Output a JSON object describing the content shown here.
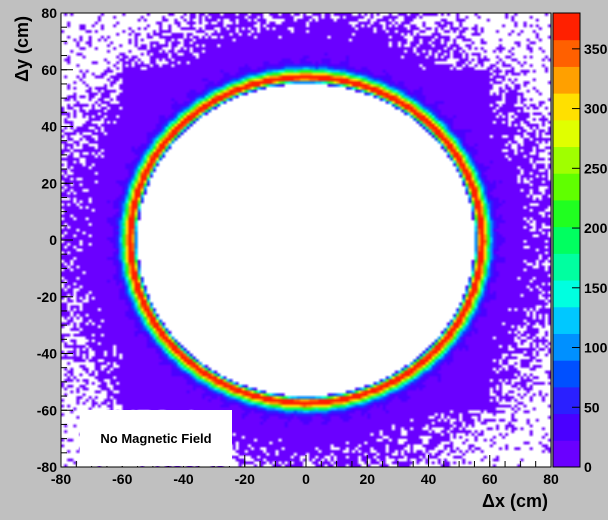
{
  "chart_data": {
    "type": "heatmap",
    "title": "",
    "xlabel": "Δx (cm)",
    "ylabel": "Δy (cm)",
    "xlim": [
      -80,
      80
    ],
    "ylim": [
      -80,
      80
    ],
    "x_ticks": [
      -80,
      -60,
      -40,
      -20,
      0,
      20,
      40,
      60,
      80
    ],
    "y_ticks": [
      -80,
      -60,
      -40,
      -20,
      0,
      20,
      40,
      60,
      80
    ],
    "colorbar": {
      "range": [
        0,
        380
      ],
      "ticks": [
        0,
        50,
        100,
        150,
        200,
        250,
        300,
        350
      ],
      "colors": [
        "#6a00ff",
        "#4a00ff",
        "#2a20ff",
        "#0050ff",
        "#0090ff",
        "#00c8ff",
        "#00ffe0",
        "#00ffa0",
        "#00ff60",
        "#20ff20",
        "#60ff00",
        "#a0ff00",
        "#e0ff00",
        "#ffe000",
        "#ffa000",
        "#ff6000",
        "#ff2000"
      ]
    },
    "distribution": {
      "description_free": true,
      "ring_radius_cm": 57,
      "ring_peak_value": 380,
      "inner_empty_radius_cm": 55,
      "background_value": 10
    },
    "annotation": "No Magnetic Field",
    "grid": false
  }
}
